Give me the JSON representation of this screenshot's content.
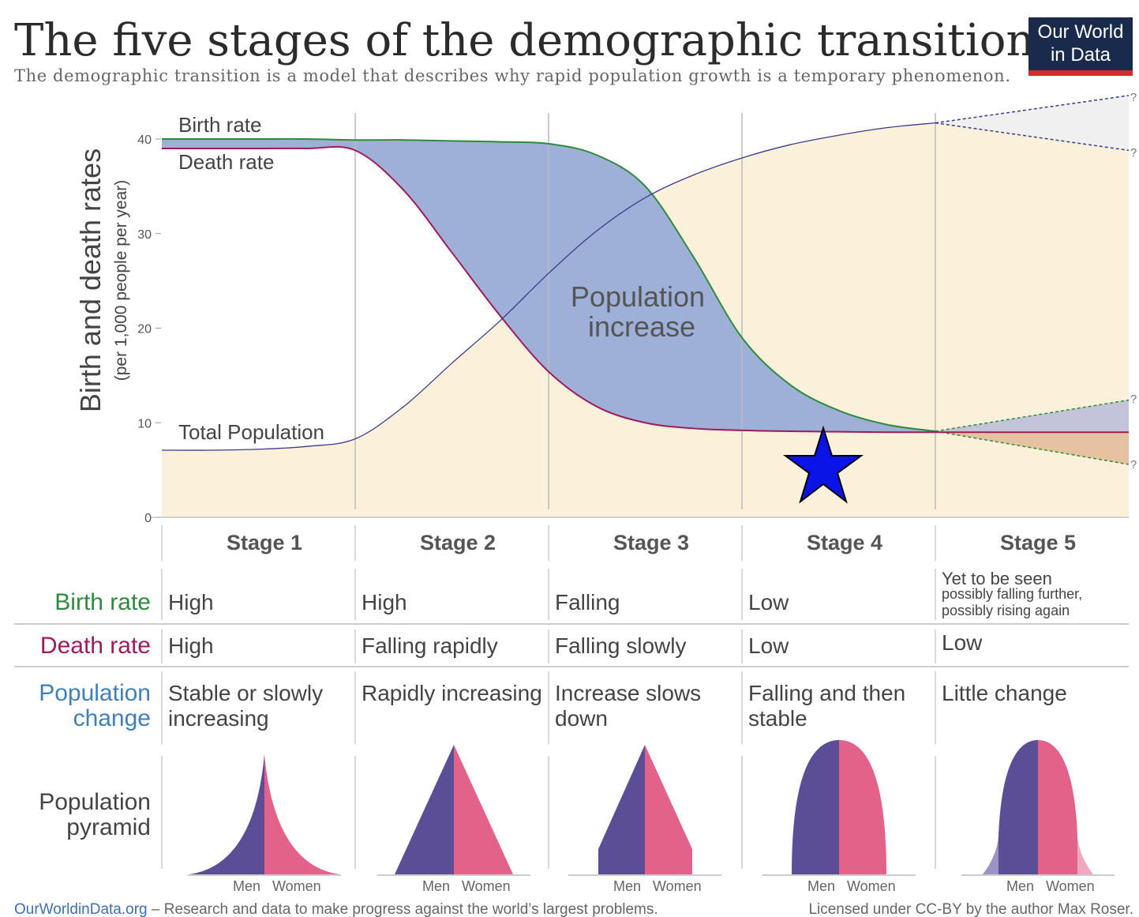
{
  "header": {
    "title": "The five stages of the demographic transition",
    "subtitle": "The demographic transition is a model that describes why rapid population growth is a temporary phenomenon.",
    "logo": [
      "Our World",
      "in Data"
    ]
  },
  "chart_data": {
    "type": "line",
    "ylabel": "Birth and death rates",
    "ylabel_sub": "(per 1,000 people per year)",
    "ylim": [
      0,
      40
    ],
    "yticks": [
      0,
      10,
      20,
      30,
      40
    ],
    "xlim": [
      0,
      5
    ],
    "grid": true,
    "annotation": [
      "Population",
      "increase"
    ],
    "question_marks": [
      "?",
      "?",
      "?",
      "?"
    ],
    "series": [
      {
        "name": "Birth rate",
        "color": "#2e8b3e",
        "x": [
          0,
          0.25,
          0.5,
          0.75,
          1,
          1.25,
          1.5,
          1.75,
          2,
          2.25,
          2.5,
          2.75,
          3,
          3.25,
          3.5,
          3.75,
          4
        ],
        "values": [
          40,
          40,
          40,
          40,
          39.9,
          39.9,
          39.8,
          39.7,
          39.5,
          38.3,
          35,
          27.5,
          19,
          14,
          11.3,
          9.8,
          9.1
        ],
        "projection_x": [
          4,
          5
        ],
        "projection_high": [
          9.1,
          12.4
        ],
        "projection_low": [
          9.1,
          5.6
        ]
      },
      {
        "name": "Death rate",
        "color": "#a0195f",
        "x": [
          0,
          0.25,
          0.5,
          0.75,
          1,
          1.25,
          1.5,
          1.75,
          2,
          2.25,
          2.5,
          2.75,
          3,
          3.25,
          3.5,
          3.75,
          4,
          5
        ],
        "values": [
          39,
          39,
          39,
          39,
          38.8,
          34.6,
          28,
          21.3,
          15.4,
          11.7,
          10,
          9.4,
          9.2,
          9.1,
          9.05,
          9,
          9,
          9
        ]
      },
      {
        "name": "Total Population",
        "color": "#3b3b8f",
        "x": [
          0,
          0.25,
          0.5,
          0.75,
          1,
          1.25,
          1.5,
          1.75,
          2,
          2.25,
          2.5,
          2.75,
          3,
          3.25,
          3.5,
          3.75,
          4
        ],
        "values": [
          7.1,
          7.1,
          7.2,
          7.5,
          8.3,
          11.7,
          16.3,
          20.8,
          25.8,
          30.3,
          33.8,
          36.2,
          38,
          39.4,
          40.4,
          41.2,
          41.7
        ],
        "projection_x": [
          4,
          5
        ],
        "projection_high": [
          41.7,
          44.6
        ],
        "projection_low": [
          41.7,
          38.8
        ]
      }
    ]
  },
  "table": {
    "stages": [
      "Stage 1",
      "Stage 2",
      "Stage 3",
      "Stage 4",
      "Stage 5"
    ],
    "rows": [
      {
        "label": [
          "Birth rate"
        ],
        "color": "#2e8b3e",
        "cells": [
          [
            "High"
          ],
          [
            "High"
          ],
          [
            "Falling"
          ],
          [
            "Low"
          ],
          [
            "Yet to be seen",
            "possibly falling further,",
            "possibly rising again"
          ]
        ]
      },
      {
        "label": [
          "Death rate"
        ],
        "color": "#a0195f",
        "cells": [
          [
            "High"
          ],
          [
            "Falling rapidly"
          ],
          [
            "Falling slowly"
          ],
          [
            "Low"
          ],
          [
            "Low"
          ]
        ]
      },
      {
        "label": [
          "Population",
          "change"
        ],
        "color": "#3f7fbf",
        "cells": [
          [
            "Stable or slowly",
            "increasing"
          ],
          [
            "Rapidly increasing"
          ],
          [
            "Increase slows",
            "down"
          ],
          [
            "Falling and then",
            "stable"
          ],
          [
            "Little change"
          ]
        ]
      },
      {
        "label": [
          "Population",
          "pyramid"
        ],
        "color": "#444444"
      }
    ],
    "pyramids": [
      [
        "Men",
        "Women"
      ],
      [
        "Men",
        "Women"
      ],
      [
        "Men",
        "Women"
      ],
      [
        "Men",
        "Women"
      ],
      [
        "Men",
        "Women"
      ]
    ]
  },
  "footer": {
    "site": "OurWorldinData.org",
    "tagline": " – Research and data to make progress against the world’s largest problems.",
    "license": "Licensed under CC-BY by the author Max Roser."
  }
}
